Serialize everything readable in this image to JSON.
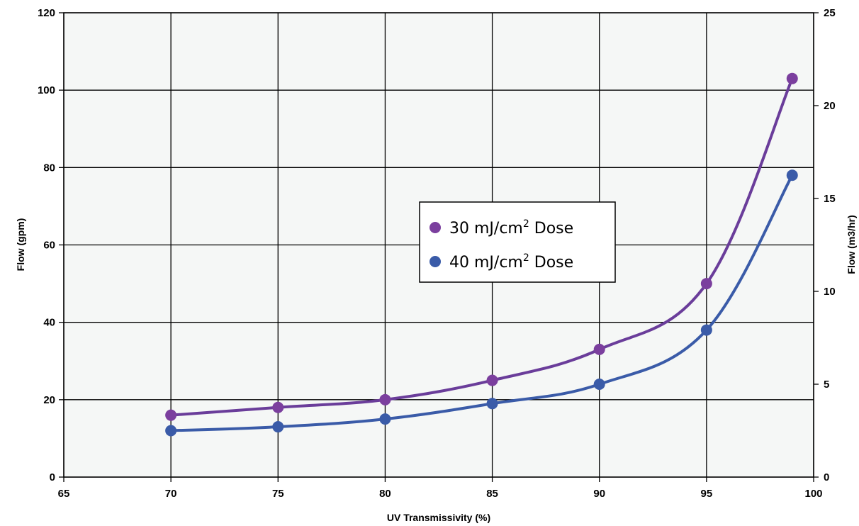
{
  "chart_data": {
    "type": "line",
    "xlabel": "UV Transmissivity (%)",
    "ylabel": "Flow (gpm)",
    "y2label": "Flow (m3/hr)",
    "xlim": [
      65,
      100
    ],
    "ylim": [
      0,
      120
    ],
    "y2lim": [
      0,
      25
    ],
    "x_ticks": [
      "65",
      "70",
      "75",
      "80",
      "85",
      "90",
      "95",
      "100"
    ],
    "y_ticks": [
      "0",
      "20",
      "40",
      "60",
      "80",
      "100",
      "120"
    ],
    "y2_ticks": [
      "0",
      "5",
      "10",
      "15",
      "20",
      "25"
    ],
    "grid": true,
    "legend_position": "center",
    "series": [
      {
        "name": "30 mJ/cm² Dose",
        "legend_base": "30 mJ/cm",
        "legend_sup": "2",
        "legend_tail": " Dose",
        "color": "#6a3d9a",
        "marker_color": "#7b3f9e",
        "x": [
          70,
          75,
          80,
          85,
          90,
          95,
          99
        ],
        "y": [
          16,
          18,
          20,
          25,
          33,
          50,
          103
        ]
      },
      {
        "name": "40 mJ/cm² Dose",
        "legend_base": "40 mJ/cm",
        "legend_sup": "2",
        "legend_tail": " Dose",
        "color": "#3a5ba8",
        "marker_color": "#3a5ba8",
        "x": [
          70,
          75,
          80,
          85,
          90,
          95,
          99
        ],
        "y": [
          12,
          13,
          15,
          19,
          24,
          38,
          78
        ]
      }
    ]
  }
}
